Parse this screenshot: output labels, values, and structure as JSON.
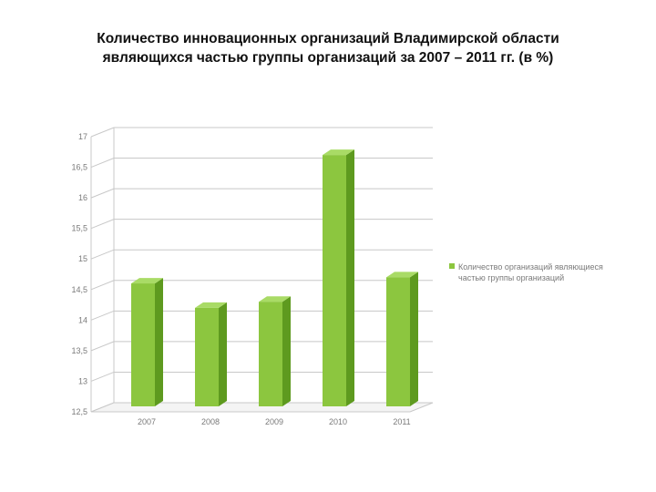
{
  "title_line1": "Количество инновационных организаций Владимирской области",
  "title_line2": "являющихся частью группы организаций за 2007 – 2011 гг. (в %)",
  "chart_data": {
    "type": "bar",
    "categories": [
      "2007",
      "2008",
      "2009",
      "2010",
      "2011"
    ],
    "series": [
      {
        "name": "Количество организаций являющиеся частью группы организаций",
        "values": [
          14.6,
          14.2,
          14.3,
          16.7,
          14.7
        ],
        "color": "#8cc63f"
      }
    ],
    "ylim": [
      12.5,
      17
    ],
    "yticks": [
      "17",
      "16,5",
      "16",
      "15,5",
      "15",
      "14,5",
      "14",
      "13,5",
      "13",
      "12,5"
    ],
    "grid": true,
    "legend_position": "right",
    "legend_lines": [
      "Количество организаций являющиеся",
      "частью группы организаций"
    ],
    "style_3d": true
  }
}
